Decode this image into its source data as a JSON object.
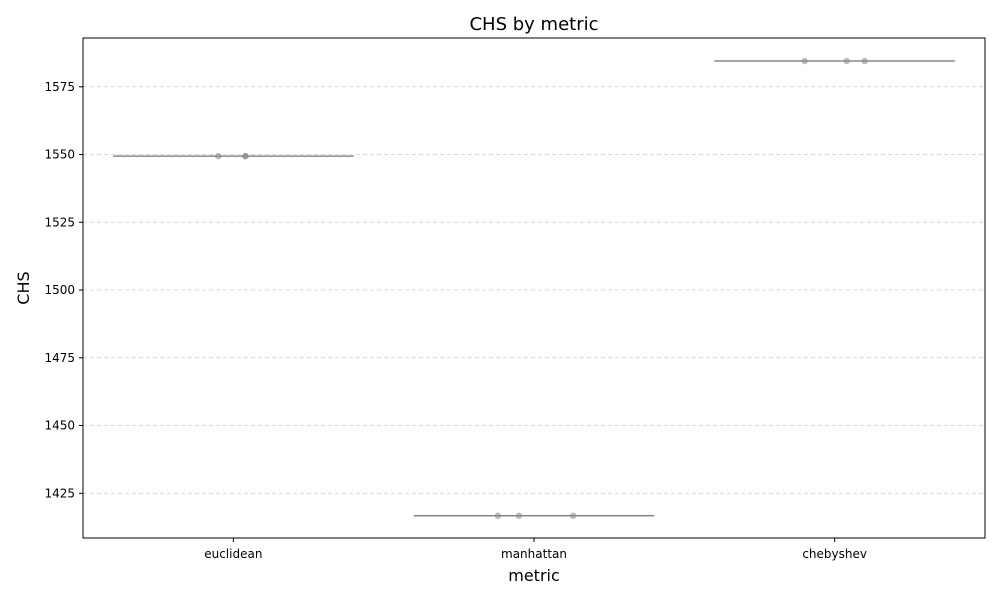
{
  "chart_data": {
    "type": "box",
    "title": "CHS by metric",
    "xlabel": "metric",
    "ylabel": "CHS",
    "categories": [
      "euclidean",
      "manhattan",
      "chebyshev"
    ],
    "medians": [
      1549.4,
      1416.7,
      1584.5
    ],
    "points": [
      [
        1549.4,
        1549.4,
        1549.4
      ],
      [
        1416.7,
        1416.7,
        1416.7
      ],
      [
        1584.5,
        1584.5,
        1584.5
      ]
    ],
    "ylim": [
      1408.5,
      1593.0
    ],
    "yticks": [
      1425,
      1450,
      1475,
      1500,
      1525,
      1550,
      1575
    ],
    "grid": "y-dashed",
    "color": "#707070"
  }
}
